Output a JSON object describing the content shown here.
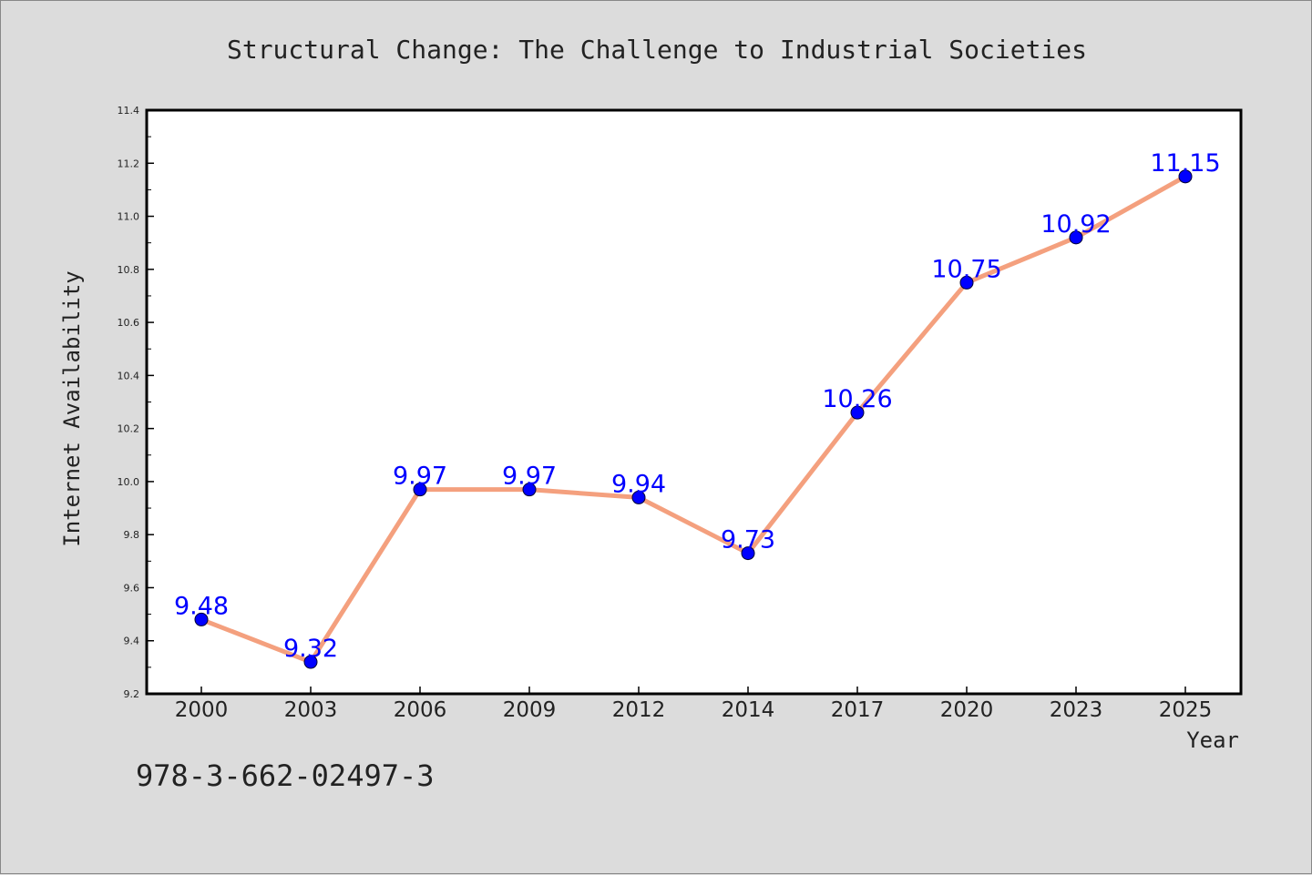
{
  "colors": {
    "background": "#dcdcdc",
    "plot_area": "#ffffff",
    "line": "#f4a07e",
    "marker": "#0000ff",
    "data_label": "#0000ff",
    "text": "#222222"
  },
  "isbn": "978-3-662-02497-3",
  "chart_data": {
    "type": "line",
    "title": "Structural Change: The Challenge to Industrial Societies",
    "xlabel": "Year",
    "ylabel": "Internet Availability",
    "categories": [
      "2000",
      "2003",
      "2006",
      "2009",
      "2012",
      "2014",
      "2017",
      "2020",
      "2023",
      "2025"
    ],
    "series": [
      {
        "values": [
          9.48,
          9.32,
          9.97,
          9.97,
          9.94,
          9.73,
          10.26,
          10.75,
          10.92,
          11.15
        ]
      }
    ],
    "data_labels": [
      "9.48",
      "9.32",
      "9.97",
      "9.97",
      "9.94",
      "9.73",
      "10.26",
      "10.75",
      "10.92",
      "11.15"
    ],
    "ylim": [
      9.2,
      11.4
    ],
    "yticks": [
      "9.2",
      "9.4",
      "9.6",
      "9.8",
      "10.0",
      "10.2",
      "10.4",
      "10.6",
      "10.8",
      "11.0",
      "11.2",
      "11.4"
    ],
    "grid": false,
    "legend": "none",
    "markers": "circle"
  }
}
